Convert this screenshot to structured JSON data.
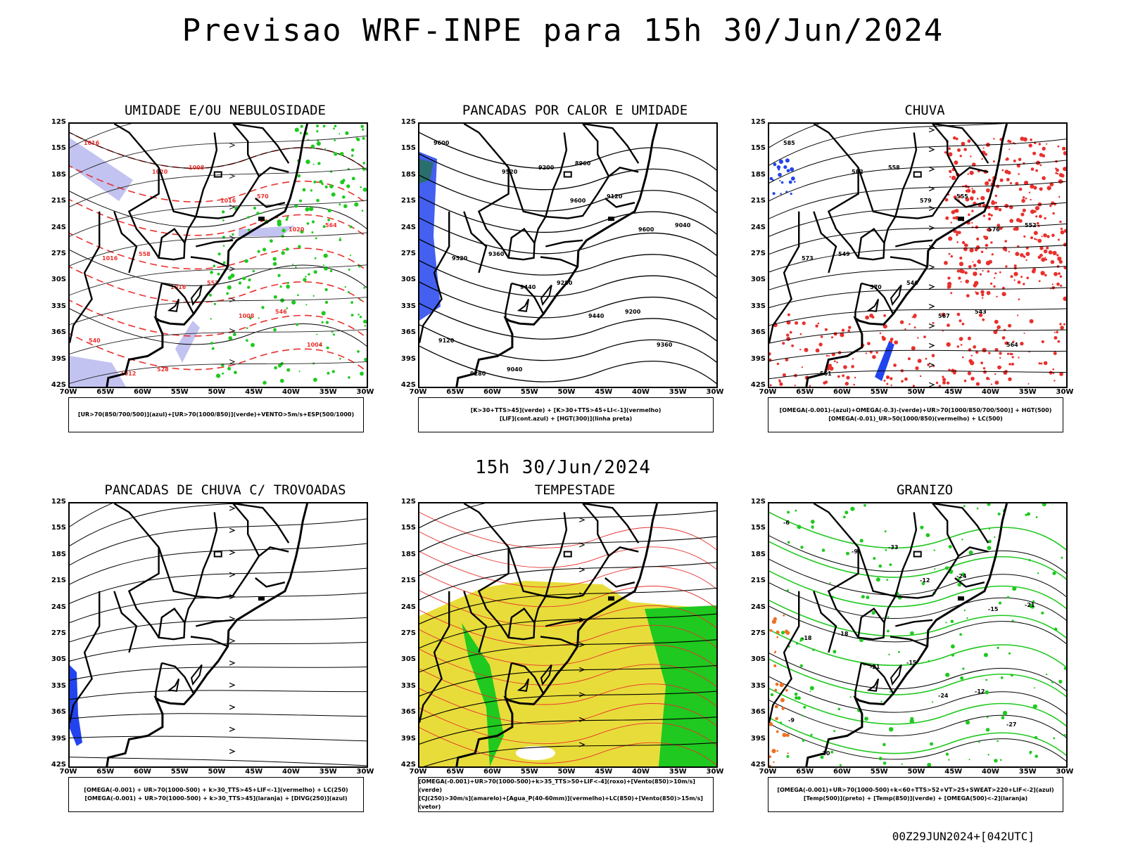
{
  "title": "Previsao WRF-INPE  para 15h 30/Jun/2024",
  "mid_title": "15h 30/Jun/2024",
  "footer": "00Z29JUN2024+[042UTC]",
  "latitudes": [
    "12S",
    "15S",
    "18S",
    "21S",
    "24S",
    "27S",
    "30S",
    "33S",
    "36S",
    "39S",
    "42S"
  ],
  "longitudes": [
    "70W",
    "65W",
    "60W",
    "55W",
    "50W",
    "45W",
    "40W",
    "35W",
    "30W"
  ],
  "colors": {
    "red": "#e8302d",
    "green": "#1fc91f",
    "blue": "#2244ee",
    "lightblue": "#b4b4ee",
    "yellow": "#e8dc3a",
    "orange": "#f07020"
  },
  "panels": [
    {
      "title": "UMIDADE E/OU NEBULOSIDADE",
      "legend": [
        "[UR>70(850/700/500)](azul)+[UR>70(1000/850)](verde)+VENTO>5m/s+ESP(500/1000)"
      ],
      "labels": [
        "1016",
        "1020",
        "1016",
        "1020",
        "1016",
        "1016",
        "1008",
        "1004",
        "1012",
        "1008",
        "570",
        "564",
        "558",
        "552",
        "546",
        "540",
        "528"
      ]
    },
    {
      "title": "PANCADAS POR CALOR E UMIDADE",
      "legend": [
        "[K>30+TTS>45](verde) + [K>30+TTS>45+LI<-1](vermelho)",
        "[LIF](cont.azul) + [HGT(300)](linha preta)"
      ],
      "labels": [
        "9600",
        "9520",
        "9600",
        "9600",
        "9520",
        "9440",
        "9440",
        "9360",
        "9280",
        "9200",
        "9120",
        "9040",
        "9360",
        "9280",
        "9200",
        "9120",
        "9040",
        "8960"
      ]
    },
    {
      "title": "CHUVA",
      "legend": [
        "[OMEGA(-0.001)-(azul)+OMEGA(-0.3)-(verde)+UR>70(1000/850/700/500)] + HGT(500)",
        "[OMEGA(-0.01)_UR>50(1000/850)(vermelho) + LC(500)"
      ],
      "labels": [
        "585",
        "582",
        "579",
        "576",
        "573",
        "570",
        "567",
        "564",
        "561",
        "558",
        "555",
        "552",
        "549",
        "546",
        "543"
      ]
    },
    {
      "title": "PANCADAS DE CHUVA C/ TROVOADAS",
      "legend": [
        "[OMEGA(-0.001) + UR>70(1000-500) + k>30_TTS>45+LIF<-1](vermelho) + LC(250)",
        "[OMEGA(-0.001) + UR>70(1000-500) + k>30_TTS>45](laranja) + [DIVG(250)](azul)"
      ],
      "labels": []
    },
    {
      "title": "TEMPESTADE",
      "legend": [
        "[OMEGA(-0.001)+UR>70(1000-500)+k>35_TTS>50+LIF<-4](roxo)+[Vento(850)>10m/s](verde)",
        "[CJ(250)>30m/s](amarelo)+[Agua_P(40-60mm)](vermelho)+LC(850)+[Vento(850)>15m/s](vetor)"
      ],
      "labels": []
    },
    {
      "title": "GRANIZO",
      "legend": [
        "[OMEGA(-0.001)+UR>70(1000-500)+k<60+TTS>52+VT>25+SWEAT>220+LIF<-2](azul)",
        "[Temp(500)](preto) + [Temp(850)](verde) + [OMEGA(500)<-2](laranja)"
      ],
      "labels": [
        "-6",
        "-9",
        "-12",
        "-15",
        "-18",
        "-21",
        "-24",
        "-27",
        "-30",
        "-33",
        "-24",
        "-21",
        "-18",
        "-15",
        "-12",
        "-9"
      ]
    }
  ]
}
